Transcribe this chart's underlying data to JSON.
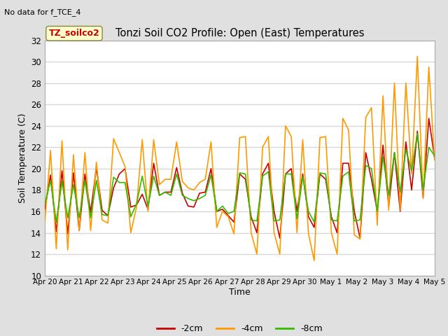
{
  "title": "Tonzi Soil CO2 Profile: Open (East) Temperatures",
  "subtitle": "No data for f_TCE_4",
  "ylabel": "Soil Temperature (C)",
  "xlabel": "Time",
  "ylim": [
    10,
    32
  ],
  "yticks": [
    10,
    12,
    14,
    16,
    18,
    20,
    22,
    24,
    26,
    28,
    30,
    32
  ],
  "fig_bg_color": "#e0e0e0",
  "plot_bg_color": "#ffffff",
  "grid_color": "#d8d8d8",
  "annotation_text": "TZ_soilco2",
  "annotation_bg": "#ffffcc",
  "annotation_border": "#cc0000",
  "legend_labels": [
    "-2cm",
    "-4cm",
    "-8cm"
  ],
  "line_colors": [
    "#cc0000",
    "#ff9900",
    "#33bb00"
  ],
  "line_width": 1.2,
  "x_tick_labels": [
    "Apr 20",
    "Apr 21",
    "Apr 22",
    "Apr 23",
    "Apr 24",
    "Apr 25",
    "Apr 26",
    "Apr 27",
    "Apr 28",
    "Apr 29",
    "Apr 30",
    "May 1",
    "May 2",
    "May 3",
    "May 4",
    "May 5"
  ],
  "t_2cm": [
    16.2,
    19.4,
    14.1,
    19.8,
    13.9,
    19.6,
    14.2,
    19.5,
    15.9,
    20.1,
    16.1,
    15.6,
    18.2,
    19.5,
    20.0,
    16.4,
    16.6,
    17.6,
    16.2,
    20.5,
    17.5,
    17.8,
    17.8,
    20.1,
    17.7,
    16.5,
    16.4,
    17.7,
    17.8,
    20.0,
    16.0,
    16.2,
    15.6,
    15.0,
    19.5,
    19.0,
    15.5,
    14.0,
    19.5,
    20.5,
    16.0,
    13.5,
    19.5,
    20.0,
    16.0,
    19.5,
    15.5,
    14.5,
    19.5,
    19.0,
    15.5,
    14.0,
    20.5,
    20.5,
    16.0,
    13.5,
    21.5,
    19.0,
    16.0,
    22.2,
    16.5,
    21.5,
    16.0,
    22.5,
    18.0,
    23.5,
    17.3,
    24.7,
    21.0
  ],
  "t_4cm": [
    15.0,
    21.7,
    12.5,
    22.6,
    12.4,
    21.3,
    14.2,
    21.5,
    14.2,
    20.6,
    15.2,
    14.9,
    22.8,
    21.5,
    20.2,
    14.0,
    16.4,
    22.7,
    16.0,
    22.7,
    18.5,
    19.0,
    19.0,
    22.5,
    18.8,
    18.2,
    18.0,
    18.7,
    19.0,
    22.5,
    14.5,
    16.0,
    15.5,
    13.9,
    22.9,
    23.0,
    14.0,
    12.0,
    22.0,
    23.0,
    14.0,
    12.0,
    24.0,
    23.0,
    14.0,
    22.7,
    13.9,
    11.4,
    22.9,
    23.0,
    14.0,
    12.0,
    24.7,
    23.6,
    13.8,
    13.4,
    24.8,
    25.7,
    14.7,
    26.8,
    16.1,
    28.0,
    16.1,
    28.0,
    19.5,
    30.5,
    17.2,
    29.5,
    20.8
  ],
  "t_8cm": [
    16.7,
    18.9,
    15.0,
    18.8,
    15.4,
    18.5,
    15.4,
    18.9,
    15.4,
    18.9,
    15.7,
    15.6,
    19.2,
    18.7,
    18.7,
    15.5,
    16.7,
    19.3,
    16.5,
    19.3,
    17.5,
    17.8,
    17.5,
    19.5,
    17.5,
    17.2,
    17.0,
    17.2,
    17.5,
    19.4,
    16.0,
    16.5,
    15.8,
    16.0,
    19.6,
    19.5,
    15.2,
    15.1,
    19.3,
    19.7,
    15.1,
    15.2,
    19.5,
    19.5,
    15.3,
    19.3,
    16.0,
    15.0,
    19.6,
    19.5,
    15.2,
    15.1,
    19.3,
    19.7,
    15.1,
    15.2,
    20.3,
    20.0,
    16.0,
    21.1,
    17.5,
    21.5,
    17.8,
    21.8,
    19.8,
    23.3,
    18.0,
    22.0,
    21.2
  ]
}
